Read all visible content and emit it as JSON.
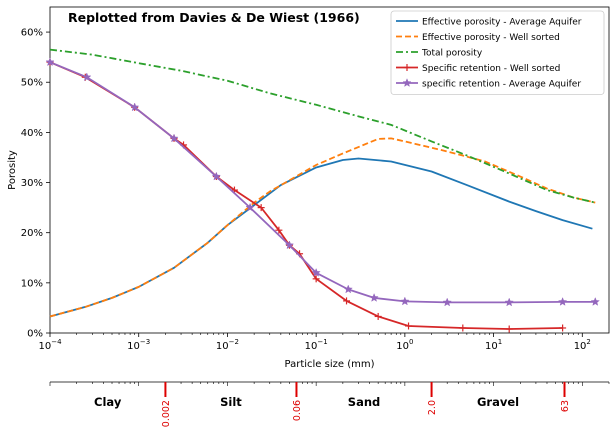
{
  "chart_data": {
    "type": "line",
    "title": "Replotted from Davies & De Wiest (1966)",
    "xlabel": "Particle size (mm)",
    "ylabel": "Porosity",
    "xscale": "log",
    "xlim": [
      0.0001,
      200
    ],
    "ylim": [
      0,
      0.65
    ],
    "x_ticks": [
      {
        "value": 0.0001,
        "base": "10",
        "exp": "−4"
      },
      {
        "value": 0.001,
        "base": "10",
        "exp": "−3"
      },
      {
        "value": 0.01,
        "base": "10",
        "exp": "−2"
      },
      {
        "value": 0.1,
        "base": "10",
        "exp": "−1"
      },
      {
        "value": 1,
        "base": "10",
        "exp": "0"
      },
      {
        "value": 10,
        "base": "10",
        "exp": "1"
      },
      {
        "value": 100,
        "base": "10",
        "exp": "2"
      }
    ],
    "y_ticks": [
      {
        "value": 0,
        "label": "0%"
      },
      {
        "value": 0.1,
        "label": "10%"
      },
      {
        "value": 0.2,
        "label": "20%"
      },
      {
        "value": 0.3,
        "label": "30%"
      },
      {
        "value": 0.4,
        "label": "40%"
      },
      {
        "value": 0.5,
        "label": "50%"
      },
      {
        "value": 0.6,
        "label": "60%"
      }
    ],
    "grid": false,
    "legend_position": "top-right",
    "series": [
      {
        "name": "Effective porosity - Average Aquifer",
        "color": "#1f77b4",
        "dash": "solid",
        "marker": "none",
        "points": [
          [
            0.0001,
            0.033
          ],
          [
            0.00025,
            0.052
          ],
          [
            0.0005,
            0.07
          ],
          [
            0.001,
            0.092
          ],
          [
            0.0025,
            0.13
          ],
          [
            0.006,
            0.18
          ],
          [
            0.01,
            0.215
          ],
          [
            0.02,
            0.255
          ],
          [
            0.04,
            0.295
          ],
          [
            0.1,
            0.33
          ],
          [
            0.2,
            0.345
          ],
          [
            0.3,
            0.348
          ],
          [
            0.7,
            0.342
          ],
          [
            2,
            0.322
          ],
          [
            5,
            0.295
          ],
          [
            15,
            0.262
          ],
          [
            30,
            0.243
          ],
          [
            60,
            0.225
          ],
          [
            130,
            0.208
          ]
        ]
      },
      {
        "name": "Effective porosity - Well sorted",
        "color": "#ff7f0e",
        "dash": "dashed",
        "marker": "none",
        "points": [
          [
            0.0001,
            0.033
          ],
          [
            0.00025,
            0.052
          ],
          [
            0.0005,
            0.07
          ],
          [
            0.001,
            0.092
          ],
          [
            0.0025,
            0.13
          ],
          [
            0.006,
            0.18
          ],
          [
            0.01,
            0.215
          ],
          [
            0.02,
            0.26
          ],
          [
            0.03,
            0.282
          ],
          [
            0.1,
            0.335
          ],
          [
            0.2,
            0.358
          ],
          [
            0.5,
            0.387
          ],
          [
            0.7,
            0.388
          ],
          [
            1,
            0.382
          ],
          [
            3,
            0.362
          ],
          [
            8,
            0.342
          ],
          [
            20,
            0.312
          ],
          [
            40,
            0.288
          ],
          [
            80,
            0.27
          ],
          [
            140,
            0.26
          ]
        ]
      },
      {
        "name": "Total porosity",
        "color": "#2ca02c",
        "dash": "dashdot",
        "marker": "none",
        "points": [
          [
            0.0001,
            0.565
          ],
          [
            0.0003,
            0.555
          ],
          [
            0.001,
            0.538
          ],
          [
            0.003,
            0.523
          ],
          [
            0.01,
            0.503
          ],
          [
            0.03,
            0.478
          ],
          [
            0.1,
            0.455
          ],
          [
            0.3,
            0.432
          ],
          [
            0.7,
            0.415
          ],
          [
            2,
            0.382
          ],
          [
            5,
            0.354
          ],
          [
            15,
            0.318
          ],
          [
            40,
            0.285
          ],
          [
            80,
            0.27
          ],
          [
            140,
            0.26
          ]
        ]
      },
      {
        "name": "Specific retention - Well sorted",
        "color": "#d62728",
        "dash": "solid",
        "marker": "plus",
        "points": [
          [
            0.0001,
            0.54
          ],
          [
            0.00025,
            0.51
          ],
          [
            0.0009,
            0.45
          ],
          [
            0.0025,
            0.388
          ],
          [
            0.0032,
            0.375
          ],
          [
            0.0075,
            0.312
          ],
          [
            0.012,
            0.285
          ],
          [
            0.024,
            0.25
          ],
          [
            0.038,
            0.205
          ],
          [
            0.05,
            0.175
          ],
          [
            0.065,
            0.158
          ],
          [
            0.1,
            0.108
          ],
          [
            0.22,
            0.064
          ],
          [
            0.5,
            0.033
          ],
          [
            1.1,
            0.014
          ],
          [
            4.5,
            0.01
          ],
          [
            15,
            0.008
          ],
          [
            60,
            0.01
          ]
        ]
      },
      {
        "name": "specific retention - Average Aquifer",
        "color": "#9467bd",
        "dash": "solid",
        "marker": "star",
        "points": [
          [
            0.0001,
            0.54
          ],
          [
            0.00026,
            0.51
          ],
          [
            0.0009,
            0.45
          ],
          [
            0.0025,
            0.388
          ],
          [
            0.0075,
            0.312
          ],
          [
            0.018,
            0.25
          ],
          [
            0.05,
            0.175
          ],
          [
            0.1,
            0.12
          ],
          [
            0.23,
            0.087
          ],
          [
            0.45,
            0.07
          ],
          [
            1,
            0.063
          ],
          [
            3,
            0.061
          ],
          [
            15,
            0.061
          ],
          [
            60,
            0.062
          ],
          [
            140,
            0.062
          ]
        ]
      }
    ]
  },
  "class_scale": {
    "labels": [
      {
        "name": "Clay",
        "from": 0.0001,
        "to": 0.002
      },
      {
        "name": "Silt",
        "from": 0.002,
        "to": 0.06
      },
      {
        "name": "Sand",
        "from": 0.06,
        "to": 2
      },
      {
        "name": "Gravel",
        "from": 2,
        "to": 63
      }
    ],
    "boundaries": [
      {
        "value": 0.002,
        "label": "0.002"
      },
      {
        "value": 0.06,
        "label": "0.06"
      },
      {
        "value": 2,
        "label": "2.0"
      },
      {
        "value": 63,
        "label": "63"
      }
    ],
    "boundary_color": "#dd0000"
  }
}
